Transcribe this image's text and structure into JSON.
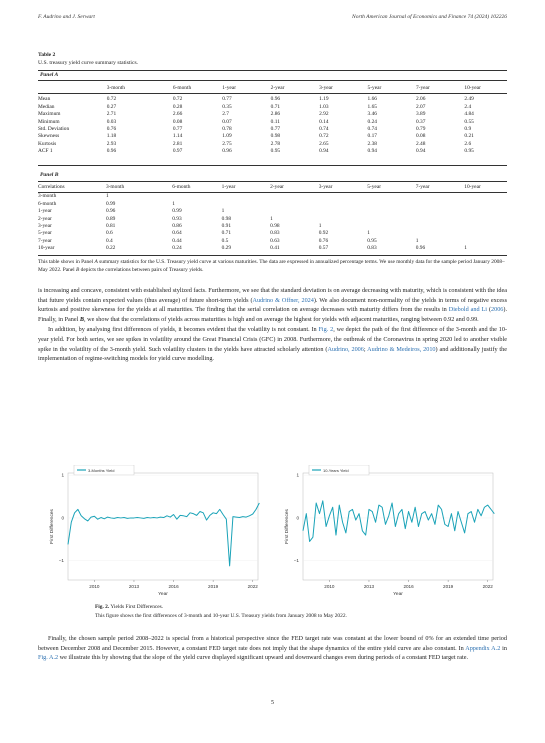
{
  "header": {
    "left": "F. Audrino and J. Serwart",
    "right": "North American Journal of Economics and Finance 74 (2024) 102226"
  },
  "table": {
    "label": "Table 2",
    "title": "U.S. treasury yield curve summary statistics.",
    "panelA_label": "Panel A",
    "columns": [
      "3-month",
      "6-month",
      "1-year",
      "2-year",
      "3-year",
      "5-year",
      "7-year",
      "10-year"
    ],
    "panelA_rows": [
      {
        "name": "Mean",
        "values": [
          "0.72",
          "0.72",
          "0.77",
          "0.96",
          "1.19",
          "1.66",
          "2.06",
          "2.49"
        ]
      },
      {
        "name": "Median",
        "values": [
          "0.27",
          "0.28",
          "0.35",
          "0.71",
          "1.03",
          "1.65",
          "2.07",
          "2.4"
        ]
      },
      {
        "name": "Maximum",
        "values": [
          "2.71",
          "2.66",
          "2.7",
          "2.86",
          "2.92",
          "3.46",
          "3.89",
          "4.84"
        ]
      },
      {
        "name": "Minimum",
        "values": [
          "0.03",
          "0.08",
          "0.07",
          "0.11",
          "0.14",
          "0.24",
          "0.37",
          "0.55"
        ]
      },
      {
        "name": "Std. Deviation",
        "values": [
          "0.76",
          "0.77",
          "0.78",
          "0.77",
          "0.74",
          "0.74",
          "0.79",
          "0.9"
        ]
      },
      {
        "name": "Skewness",
        "values": [
          "1.18",
          "1.14",
          "1.09",
          "0.98",
          "0.72",
          "0.17",
          "0.08",
          "0.21"
        ]
      },
      {
        "name": "Kurtosis",
        "values": [
          "2.93",
          "2.81",
          "2.75",
          "2.78",
          "2.65",
          "2.38",
          "2.48",
          "2.6"
        ]
      },
      {
        "name": "ACF 1",
        "values": [
          "0.96",
          "0.97",
          "0.96",
          "0.95",
          "0.94",
          "0.94",
          "0.94",
          "0.95"
        ]
      }
    ],
    "panelB_label": "Panel B",
    "panelB_first": "Correlations",
    "panelB_rows": [
      {
        "name": "3-month",
        "values": [
          "1",
          "",
          "",
          "",
          "",
          "",
          "",
          ""
        ]
      },
      {
        "name": "6-month",
        "values": [
          "0.99",
          "1",
          "",
          "",
          "",
          "",
          "",
          ""
        ]
      },
      {
        "name": "1-year",
        "values": [
          "0.96",
          "0.99",
          "1",
          "",
          "",
          "",
          "",
          ""
        ]
      },
      {
        "name": "2-year",
        "values": [
          "0.89",
          "0.93",
          "0.98",
          "1",
          "",
          "",
          "",
          ""
        ]
      },
      {
        "name": "3-year",
        "values": [
          "0.81",
          "0.86",
          "0.91",
          "0.98",
          "1",
          "",
          "",
          ""
        ]
      },
      {
        "name": "5-year",
        "values": [
          "0.6",
          "0.64",
          "0.71",
          "0.83",
          "0.92",
          "1",
          "",
          ""
        ]
      },
      {
        "name": "7-year",
        "values": [
          "0.4",
          "0.44",
          "0.5",
          "0.63",
          "0.76",
          "0.95",
          "1",
          ""
        ]
      },
      {
        "name": "10-year",
        "values": [
          "0.22",
          "0.24",
          "0.29",
          "0.41",
          "0.57",
          "0.83",
          "0.96",
          "1"
        ]
      }
    ],
    "note_prefix": "This table shows in Panel ",
    "note_a": "A",
    "note_mid": " summary statistics for the U.S. Treasury yield curve at various maturities. The data are expressed in annualized percentage terms. We use monthly data for the sample period January 2008–May 2022. Panel ",
    "note_b": "B",
    "note_end": " depicts the correlations between pairs of Treasury yields."
  },
  "para1": {
    "t1": "is increasing and concave, consistent with established stylized facts. Furthermore, we see that the standard deviation is on average decreasing with maturity, which is consistent with the idea that future yields contain expected values (thus average) of future short-term yields (",
    "l1": "Audrino & Offner, 2024",
    "t2": "). We also document non-normality of the yields in terms of negative excess kurtosis and positive skewness for the yields at all maturities. The finding that the serial correlation on average decreases with maturity differs from the results in ",
    "l2": "Diebold and Li",
    "t3": " (",
    "l3": "2006",
    "t4": "). Finally, in Panel ",
    "t4b": "B",
    "t5": ", we show that the correlations of yields across maturities is high and on average the highest for yields with adjacent maturities, ranging between 0.92 and 0.99."
  },
  "para2": {
    "t1": "In addition, by analysing first differences of yields, it becomes evident that the volatility is not constant. In ",
    "l1": "Fig. 2",
    "t2": ", we depict the path of the first difference of the 3-month and the 10-year yield. For both series, we see spikes in volatility around the Great Financial Crisis (GFC) in 2008. Furthermore, the outbreak of the Coronavirus in spring 2020 led to another visible spike in the volatility of the 3-month yield. Such volatility clusters in the yields have attracted scholarly attention (",
    "l2": "Audrino, 2006",
    "t3": "; ",
    "l3": "Audrino & Medeiros, 2010",
    "t4": ") and additionally justify the implementation of regime-switching models for yield curve modelling."
  },
  "chart_data": [
    {
      "type": "line",
      "legend": "3-Months Yield",
      "xlabel": "Year",
      "ylabel": "First Differences",
      "xticks": [
        "2010",
        "2013",
        "2016",
        "2019",
        "2022"
      ],
      "yticks": [
        "1",
        "0",
        "−1"
      ],
      "xlim": [
        2008,
        2022.4
      ],
      "ylim": [
        -1.45,
        1.05
      ],
      "x_start": 2008.0,
      "x_step_months": 3,
      "values": [
        -0.62,
        -0.1,
        0.12,
        0.2,
        0.05,
        -0.02,
        -0.07,
        0.02,
        0.04,
        -0.03,
        0.01,
        -0.02,
        0.02,
        0.0,
        -0.01,
        0.01,
        0.0,
        0.01,
        -0.01,
        0.0,
        0.0,
        0.01,
        0.0,
        -0.01,
        0.01,
        0.0,
        0.01,
        0.0,
        0.02,
        0.01,
        0.05,
        0.02,
        0.08,
        -0.03,
        0.06,
        0.05,
        0.03,
        0.12,
        0.1,
        0.06,
        0.15,
        0.12,
        -0.05,
        0.06,
        0.12,
        0.1,
        0.2,
        0.08,
        -0.03,
        -1.12,
        0.03,
        0.02,
        0.01,
        0.03,
        0.02,
        0.05,
        0.09,
        0.2,
        0.35
      ],
      "color": "#1aa3b8"
    },
    {
      "type": "line",
      "legend": "10-Years Yield",
      "xlabel": "Year",
      "ylabel": "First Differences",
      "xticks": [
        "2010",
        "2013",
        "2016",
        "2019",
        "2022"
      ],
      "yticks": [
        "1",
        "0",
        "−1"
      ],
      "xlim": [
        2008,
        2022.4
      ],
      "ylim": [
        -1.45,
        1.05
      ],
      "x_start": 2008.0,
      "x_step_months": 3,
      "values": [
        -0.3,
        0.1,
        -0.55,
        -0.45,
        0.35,
        0.1,
        0.4,
        -0.2,
        0.05,
        0.25,
        -0.4,
        0.3,
        -0.1,
        -0.35,
        0.15,
        0.2,
        -0.05,
        0.1,
        -0.3,
        -0.4,
        0.2,
        0.15,
        -0.1,
        0.3,
        0.25,
        -0.15,
        0.05,
        0.35,
        -0.2,
        0.1,
        0.2,
        -0.25,
        0.15,
        -0.1,
        0.25,
        -0.2,
        0.1,
        0.15,
        -0.05,
        0.1,
        -0.15,
        0.3,
        0.2,
        -0.15,
        -0.2,
        0.1,
        -0.3,
        0.15,
        -0.1,
        -0.35,
        0.1,
        0.15,
        -0.1,
        0.2,
        0.05,
        0.25,
        0.3,
        0.2,
        0.1
      ],
      "color": "#1aa3b8"
    }
  ],
  "figure": {
    "label": "Fig. 2.",
    "title": " Yields First Differences.",
    "caption": "This figure shows the first differences of 3-month and 10-year U.S. Treasury yields from January 2008 to May 2022."
  },
  "para3": {
    "t1": "Finally, the chosen sample period 2008–2022 is special from a historical perspective since the FED target rate was constant at the lower bound of 0% for an extended time period between December 2008 and December 2015. However, a constant FED target rate does not imply that the shape dynamics of the entire yield curve are also constant. In ",
    "l1": "Appendix A.2",
    "t2": " in ",
    "l2": "Fig. A.2",
    "t3": " we illustrate this by showing that the slope of the yield curve displayed significant upward and downward changes even during periods of a constant FED target rate."
  },
  "page_number": "5"
}
